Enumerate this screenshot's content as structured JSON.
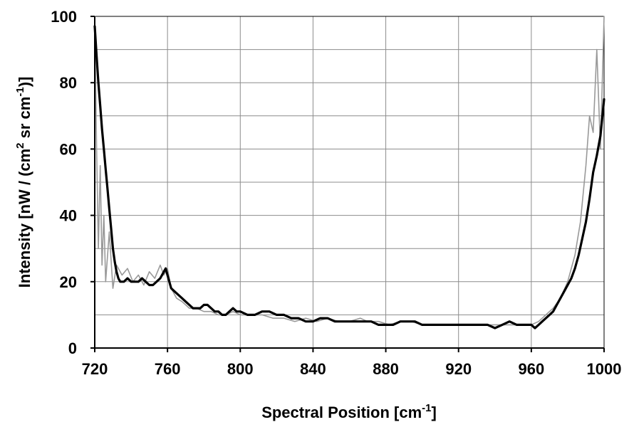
{
  "chart_data": {
    "type": "line",
    "xlabel": "Spectral Position [cm",
    "xlabel_sup": "-1",
    "xlabel_end": "]",
    "ylabel_parts": [
      "Intensity [nW / (cm",
      "2",
      " sr cm",
      "-1",
      ")]"
    ],
    "xlim": [
      720,
      1000
    ],
    "ylim": [
      0,
      100
    ],
    "x_ticks": [
      "720",
      "760",
      "800",
      "840",
      "880",
      "920",
      "960",
      "1000"
    ],
    "y_ticks": [
      "0",
      "20",
      "40",
      "60",
      "80",
      "100"
    ],
    "x_tick_values": [
      720,
      760,
      800,
      840,
      880,
      920,
      960,
      1000
    ],
    "y_tick_values": [
      0,
      20,
      40,
      60,
      80,
      100
    ],
    "grid": true,
    "legend": "none",
    "colors": {
      "raw": "#999999",
      "smoothed": "#000000",
      "grid": "#8c8c8c"
    },
    "series": [
      {
        "style": "raw noisy spectrum (gray)",
        "x": [
          720,
          721,
          722,
          723,
          724,
          725,
          726,
          728,
          730,
          732,
          735,
          738,
          741,
          744,
          747,
          750,
          753,
          756,
          758,
          760,
          762,
          765,
          768,
          772,
          776,
          780,
          784,
          788,
          792,
          796,
          800,
          806,
          812,
          818,
          824,
          830,
          836,
          842,
          848,
          854,
          860,
          866,
          870,
          876,
          882,
          888,
          894,
          900,
          906,
          912,
          918,
          924,
          930,
          936,
          942,
          948,
          954,
          960,
          964,
          968,
          972,
          976,
          980,
          984,
          987,
          990,
          992,
          994,
          996,
          998,
          1000
        ],
        "y": [
          100,
          60,
          30,
          55,
          25,
          40,
          20,
          35,
          18,
          25,
          22,
          24,
          20,
          22,
          19,
          23,
          21,
          25,
          22,
          24,
          18,
          15,
          14,
          12,
          12,
          11,
          11,
          10,
          10,
          11,
          10,
          10,
          10,
          9,
          9,
          8,
          9,
          8,
          9,
          8,
          8,
          9,
          8,
          8,
          7,
          8,
          8,
          7,
          7,
          7,
          7,
          7,
          7,
          7,
          7,
          7,
          7,
          7,
          8,
          10,
          12,
          15,
          20,
          28,
          38,
          55,
          70,
          65,
          90,
          60,
          100
        ]
      },
      {
        "style": "smoothed spectrum (black)",
        "x": [
          720,
          721,
          722,
          723,
          724,
          725,
          726,
          727,
          728,
          729,
          730,
          731,
          732,
          733,
          734,
          736,
          738,
          740,
          742,
          744,
          746,
          748,
          750,
          752,
          754,
          756,
          758,
          759,
          760,
          761,
          762,
          764,
          766,
          768,
          770,
          772,
          774,
          776,
          778,
          780,
          782,
          784,
          786,
          788,
          790,
          792,
          794,
          796,
          798,
          800,
          804,
          808,
          812,
          816,
          820,
          824,
          828,
          832,
          836,
          840,
          844,
          848,
          852,
          856,
          860,
          864,
          868,
          872,
          876,
          880,
          884,
          888,
          892,
          896,
          900,
          904,
          908,
          912,
          916,
          920,
          924,
          928,
          932,
          936,
          940,
          944,
          948,
          952,
          956,
          960,
          962,
          964,
          966,
          968,
          970,
          972,
          974,
          976,
          978,
          980,
          982,
          984,
          986,
          988,
          990,
          992,
          994,
          996,
          998,
          1000
        ],
        "y": [
          97,
          88,
          80,
          73,
          66,
          60,
          54,
          48,
          42,
          36,
          30,
          26,
          23,
          21,
          20,
          20,
          21,
          20,
          20,
          20,
          21,
          20,
          19,
          19,
          20,
          21,
          23,
          24,
          22,
          20,
          18,
          17,
          16,
          15,
          14,
          13,
          12,
          12,
          12,
          13,
          13,
          12,
          11,
          11,
          10,
          10,
          11,
          12,
          11,
          11,
          10,
          10,
          11,
          11,
          10,
          10,
          9,
          9,
          8,
          8,
          9,
          9,
          8,
          8,
          8,
          8,
          8,
          8,
          7,
          7,
          7,
          8,
          8,
          8,
          7,
          7,
          7,
          7,
          7,
          7,
          7,
          7,
          7,
          7,
          6,
          7,
          8,
          7,
          7,
          7,
          6,
          7,
          8,
          9,
          10,
          11,
          13,
          15,
          17,
          19,
          21,
          24,
          28,
          33,
          38,
          45,
          53,
          58,
          64,
          75
        ]
      }
    ]
  }
}
